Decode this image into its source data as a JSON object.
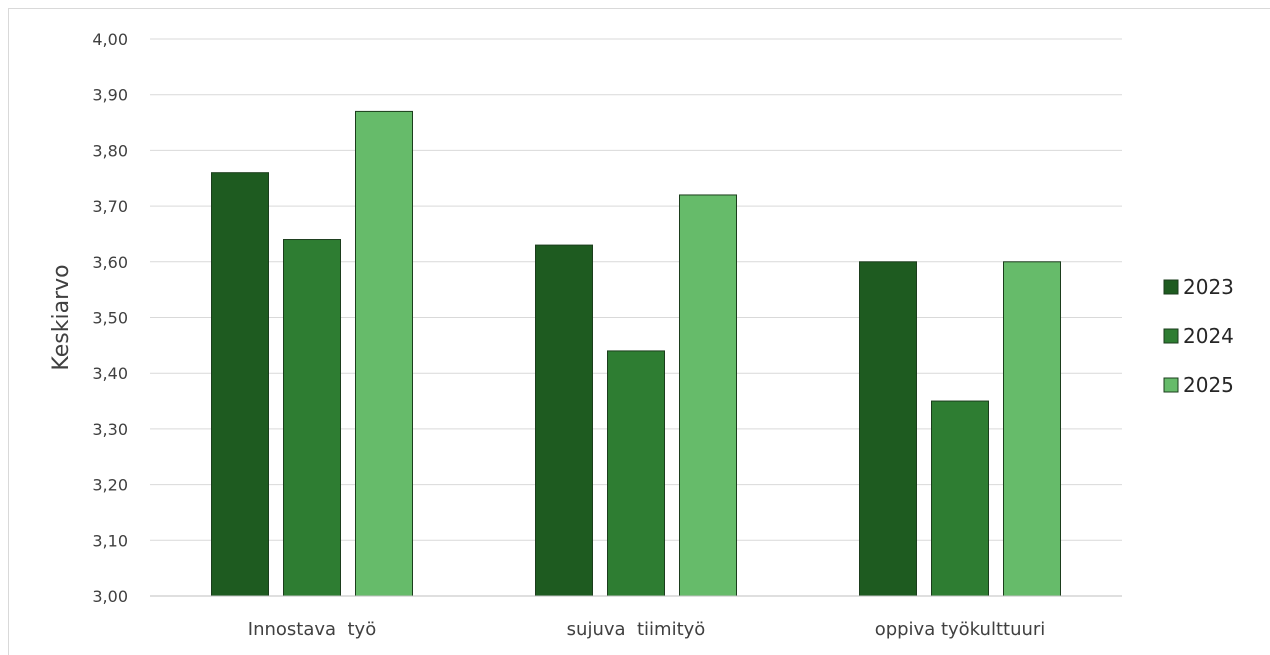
{
  "chart_data": {
    "type": "bar",
    "ylabel": "Keskiarvo",
    "ylim": [
      3.0,
      4.0
    ],
    "ytick_step": 0.1,
    "ytick_labels": [
      "3,00",
      "3,10",
      "3,20",
      "3,30",
      "3,40",
      "3,50",
      "3,60",
      "3,70",
      "3,80",
      "3,90",
      "4,00"
    ],
    "categories": [
      "Innostava  työ",
      "sujuva  tiimityö",
      "oppiva työkulttuuri"
    ],
    "series": [
      {
        "name": "2023",
        "color": "#1e5b20",
        "values": [
          3.76,
          3.63,
          3.6
        ]
      },
      {
        "name": "2024",
        "color": "#2e7d32",
        "values": [
          3.64,
          3.44,
          3.35
        ]
      },
      {
        "name": "2025",
        "color": "#66bb6a",
        "values": [
          3.87,
          3.72,
          3.6
        ]
      }
    ],
    "grid": true,
    "legend_position": "right"
  }
}
